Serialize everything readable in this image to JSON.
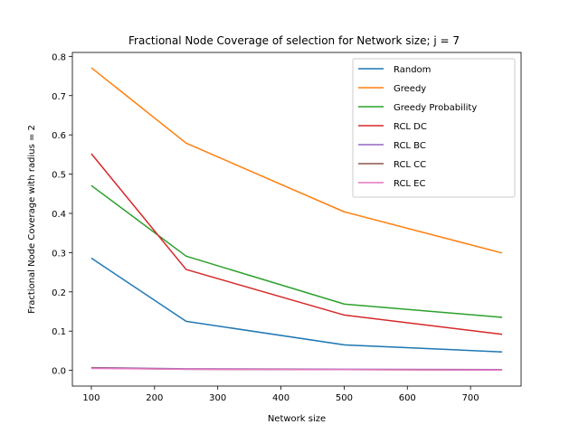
{
  "chart_data": {
    "type": "line",
    "title": "Fractional Node Coverage of selection for Network size; j = 7",
    "xlabel": "Network size",
    "ylabel": "Fractional Node Coverage with radius = 2",
    "x": [
      100,
      250,
      500,
      750
    ],
    "xlim": [
      70,
      780
    ],
    "ylim": [
      -0.04,
      0.81
    ],
    "xticks": [
      100,
      200,
      300,
      400,
      500,
      600,
      700
    ],
    "yticks": [
      0.0,
      0.1,
      0.2,
      0.3,
      0.4,
      0.5,
      0.6,
      0.7,
      0.8
    ],
    "ytick_labels": [
      "0.0",
      "0.1",
      "0.2",
      "0.3",
      "0.4",
      "0.5",
      "0.6",
      "0.7",
      "0.8"
    ],
    "grid": false,
    "legend_position": "top-right",
    "series": [
      {
        "name": "Random",
        "color": "#1f77b4",
        "values": [
          0.286,
          0.125,
          0.065,
          0.047
        ]
      },
      {
        "name": "Greedy",
        "color": "#ff7f0e",
        "values": [
          0.771,
          0.579,
          0.404,
          0.299
        ]
      },
      {
        "name": "Greedy Probability",
        "color": "#2ca02c",
        "values": [
          0.471,
          0.291,
          0.169,
          0.135
        ]
      },
      {
        "name": "RCL DC",
        "color": "#d62728",
        "values": [
          0.552,
          0.257,
          0.141,
          0.092
        ]
      },
      {
        "name": "RCL BC",
        "color": "#9467bd",
        "values": [
          0.007,
          0.004,
          0.003,
          0.002
        ]
      },
      {
        "name": "RCL CC",
        "color": "#8c564b",
        "values": [
          0.006,
          0.003,
          0.002,
          0.001
        ]
      },
      {
        "name": "RCL EC",
        "color": "#e377c2",
        "values": [
          0.005,
          0.003,
          0.002,
          0.001
        ]
      }
    ]
  }
}
